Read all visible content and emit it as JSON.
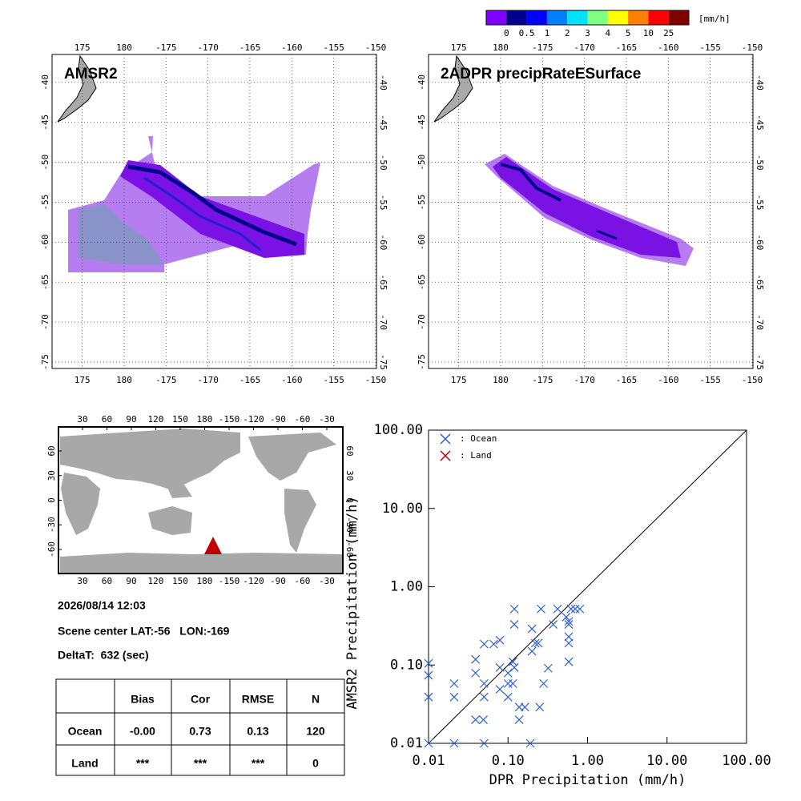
{
  "colorbar": {
    "unit": "[mm/h]",
    "colors": [
      "#8000ff",
      "#00008c",
      "#0000ff",
      "#0080ff",
      "#00e0ff",
      "#80ff80",
      "#ffff00",
      "#ff8000",
      "#ff0000",
      "#800000"
    ],
    "labels": [
      "0",
      "0.5",
      "1",
      "2",
      "3",
      "4",
      "5",
      "10",
      "25"
    ]
  },
  "maps": [
    {
      "title": "AMSR2",
      "xlim": [
        171.4,
        210.1
      ],
      "ylim": [
        -75.8,
        -36.5
      ],
      "xticks": [
        175,
        180,
        {
          "value": 185,
          "label": "-175"
        },
        {
          "value": 190,
          "label": "-170"
        },
        {
          "value": 195,
          "label": "-165"
        },
        {
          "value": 200,
          "label": "-160"
        },
        {
          "value": 205,
          "label": "-155"
        },
        {
          "value": 210,
          "label": "-150"
        }
      ],
      "yticks": [
        -40,
        -45,
        -50,
        -55,
        -60,
        -65,
        -70,
        -75
      ],
      "grid": true
    },
    {
      "title": "2ADPR precipRateESurface",
      "xlim": [
        171.4,
        210.1
      ],
      "ylim": [
        -75.8,
        -36.5
      ],
      "xticks": [
        175,
        180,
        {
          "value": 185,
          "label": "-175"
        },
        {
          "value": 190,
          "label": "-170"
        },
        {
          "value": 195,
          "label": "-165"
        },
        {
          "value": 200,
          "label": "-160"
        },
        {
          "value": 205,
          "label": "-155"
        },
        {
          "value": 210,
          "label": "-150"
        }
      ],
      "yticks": [
        -40,
        -45,
        -50,
        -55,
        -60,
        -65,
        -70,
        -75
      ],
      "grid": true
    }
  ],
  "world_map": {
    "xlim": [
      0.5,
      349.7
    ],
    "ylim": [
      -89.3,
      89.3
    ],
    "xticks": [
      30,
      60,
      90,
      120,
      150,
      180,
      {
        "value": 210,
        "label": "-150"
      },
      {
        "value": 240,
        "label": "-120"
      },
      {
        "value": 270,
        "label": "-90"
      },
      {
        "value": 300,
        "label": "-60"
      },
      {
        "value": 330,
        "label": "-30"
      }
    ],
    "yticks": [
      60,
      30,
      0,
      -30,
      -60
    ]
  },
  "info": {
    "datetime": "2026/08/14 12:03",
    "scene_center": "Scene center LAT:-56   LON:-169",
    "delta_t": "DeltaT:  632 (sec)"
  },
  "table": {
    "header": [
      "Bias",
      "Cor",
      "RMSE",
      "N"
    ],
    "rows": [
      [
        "Ocean",
        "-0.00",
        "0.73",
        "0.13",
        "120"
      ],
      [
        "Land",
        "***",
        "***",
        "***",
        "0"
      ]
    ]
  },
  "chart_data": {
    "type": "scatter",
    "xlabel": "DPR Precipitation (mm/h)",
    "ylabel": "AMSR2 Precipitation (mm/h)",
    "xlim": [
      0.01,
      100
    ],
    "ylim": [
      0.01,
      100
    ],
    "log_x": true,
    "log_y": true,
    "identity_line": true,
    "xticks": [
      {
        "value": 0.01,
        "label": "0.01"
      },
      {
        "value": 0.1,
        "label": "0.10"
      },
      {
        "value": 1,
        "label": "1.00"
      },
      {
        "value": 10,
        "label": "10.00"
      },
      {
        "value": 100,
        "label": "100.00"
      }
    ],
    "yticks": [
      {
        "value": 0.01,
        "label": "0.01"
      },
      {
        "value": 0.1,
        "label": "0.10"
      },
      {
        "value": 1,
        "label": "1.00"
      },
      {
        "value": 10,
        "label": "10.00"
      },
      {
        "value": 100,
        "label": "100.00"
      }
    ],
    "series": [
      {
        "name": ": Ocean",
        "color": "#2a5fd0",
        "x": [
          0.01,
          0.01,
          0.01,
          0.01,
          0.021,
          0.021,
          0.021,
          0.039,
          0.039,
          0.039,
          0.049,
          0.05,
          0.05,
          0.05,
          0.05,
          0.066,
          0.079,
          0.079,
          0.079,
          0.1,
          0.1,
          0.1,
          0.115,
          0.115,
          0.12,
          0.12,
          0.12,
          0.138,
          0.138,
          0.163,
          0.19,
          0.2,
          0.2,
          0.22,
          0.24,
          0.25,
          0.26,
          0.28,
          0.32,
          0.37,
          0.42,
          0.54,
          0.58,
          0.58,
          0.58,
          0.58,
          0.58,
          0.62,
          0.7,
          0.8
        ],
        "y": [
          0.105,
          0.074,
          0.039,
          0.01,
          0.058,
          0.039,
          0.01,
          0.118,
          0.079,
          0.02,
          0.02,
          0.185,
          0.058,
          0.039,
          0.01,
          0.185,
          0.208,
          0.093,
          0.049,
          0.079,
          0.058,
          0.039,
          0.11,
          0.058,
          0.52,
          0.33,
          0.093,
          0.02,
          0.029,
          0.029,
          0.01,
          0.29,
          0.15,
          0.19,
          0.19,
          0.029,
          0.52,
          0.058,
          0.091,
          0.33,
          0.52,
          0.41,
          0.36,
          0.33,
          0.23,
          0.19,
          0.11,
          0.52,
          0.52,
          0.52
        ]
      },
      {
        "name": ": Land",
        "color": "#c00000",
        "x": [],
        "y": []
      }
    ]
  }
}
